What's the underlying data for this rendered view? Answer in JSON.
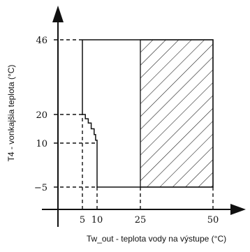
{
  "chart_data": {
    "type": "area",
    "xlabel": "Tw_out - teplota vody na výstupe (°C)",
    "ylabel": "T4 - vonkajšia teplota (°C)",
    "x_ticks": [
      5,
      10,
      25,
      50
    ],
    "y_ticks": [
      -5,
      10,
      20,
      46
    ],
    "xlim": [
      -2,
      56
    ],
    "ylim": [
      -10,
      53
    ],
    "grid": false,
    "operating_envelope": {
      "boundary": [
        [
          5,
          46
        ],
        [
          50,
          46
        ],
        [
          50,
          -5
        ],
        [
          10,
          -5
        ],
        [
          10,
          11
        ],
        [
          9.5,
          11
        ],
        [
          9.5,
          13
        ],
        [
          9,
          13
        ],
        [
          9,
          15
        ],
        [
          8,
          15
        ],
        [
          8,
          17
        ],
        [
          7,
          17
        ],
        [
          7,
          18.5
        ],
        [
          6,
          18.5
        ],
        [
          6,
          20
        ],
        [
          5,
          20
        ],
        [
          5,
          46
        ]
      ]
    },
    "hatched_region": {
      "x_range": [
        25,
        50
      ],
      "y_range": [
        -5,
        46
      ]
    },
    "reference_lines": [
      {
        "axis": "y",
        "value": 46,
        "x_to": 5
      },
      {
        "axis": "y",
        "value": 20,
        "x_to": 5
      },
      {
        "axis": "y",
        "value": 10,
        "x_to": 10
      },
      {
        "axis": "y",
        "value": -5,
        "x_to": 10
      },
      {
        "axis": "x",
        "value": 5,
        "y_to": 20
      },
      {
        "axis": "x",
        "value": 10,
        "y_to": -5
      },
      {
        "axis": "x",
        "value": 25,
        "y_to": -5
      },
      {
        "axis": "x",
        "value": 50,
        "y_to": -5
      }
    ]
  }
}
